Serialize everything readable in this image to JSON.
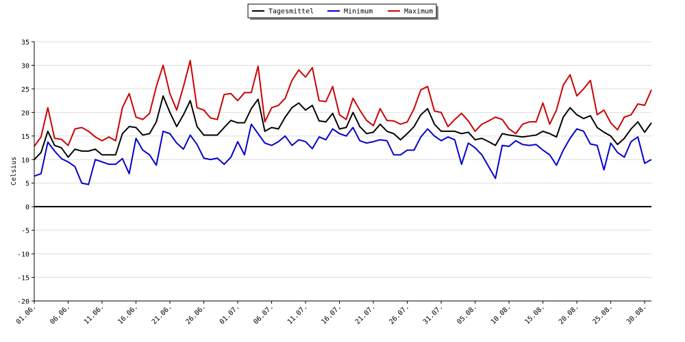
{
  "chart_data": {
    "type": "line",
    "ylabel": "Celsius",
    "ylim": [
      -20,
      35
    ],
    "yticks": [
      35,
      30,
      25,
      20,
      15,
      10,
      5,
      0,
      -5,
      -10,
      -15,
      -20
    ],
    "grid": true,
    "legend_position": "top-center",
    "x_start": "01.06.",
    "x_end": "01.09.",
    "xtick_labels": [
      "01.06.",
      "06.06.",
      "11.06.",
      "16.06.",
      "21.06.",
      "26.06.",
      "01.07.",
      "06.07.",
      "11.07.",
      "16.07.",
      "21.07.",
      "26.07.",
      "31.07.",
      "05.08.",
      "10.08.",
      "15.08.",
      "20.08.",
      "25.08.",
      "30.08."
    ],
    "series": [
      {
        "name": "Tagesmittel",
        "color": "#000000",
        "values": [
          10.0,
          11.5,
          16.0,
          13.0,
          12.5,
          10.5,
          12.2,
          11.8,
          11.8,
          12.2,
          11.0,
          11.0,
          11.0,
          15.5,
          17.0,
          16.8,
          15.2,
          15.5,
          18.0,
          23.5,
          20.0,
          17.0,
          19.5,
          22.5,
          17.0,
          15.2,
          15.2,
          15.2,
          16.8,
          18.3,
          17.8,
          17.8,
          20.8,
          22.8,
          16.0,
          16.8,
          16.5,
          19.0,
          21.0,
          22.0,
          20.5,
          21.5,
          18.2,
          18.0,
          19.8,
          16.5,
          16.8,
          20.0,
          17.0,
          15.5,
          15.8,
          17.5,
          16.0,
          15.5,
          14.2,
          15.5,
          17.0,
          19.5,
          20.8,
          17.5,
          16.0,
          16.0,
          16.0,
          15.5,
          15.8,
          14.2,
          14.5,
          13.8,
          13.0,
          15.5,
          15.2,
          15.0,
          14.8,
          15.0,
          15.2,
          16.0,
          15.5,
          14.8,
          19.0,
          21.0,
          19.5,
          18.7,
          19.3,
          16.8,
          15.8,
          15.0,
          13.2,
          14.5,
          16.5,
          18.0,
          15.8,
          17.8
        ]
      },
      {
        "name": "Minimum",
        "color": "#0000cc",
        "values": [
          6.5,
          7.0,
          13.7,
          11.8,
          10.2,
          9.5,
          8.5,
          5.0,
          4.7,
          10.0,
          9.5,
          9.0,
          9.0,
          10.2,
          7.0,
          14.5,
          12.0,
          11.0,
          8.8,
          16.0,
          15.5,
          13.5,
          12.2,
          15.2,
          13.2,
          10.3,
          10.0,
          10.3,
          9.0,
          10.5,
          13.8,
          11.0,
          17.5,
          15.5,
          13.5,
          13.0,
          13.8,
          15.0,
          13.0,
          14.2,
          13.8,
          12.3,
          14.8,
          14.2,
          16.5,
          15.5,
          15.0,
          16.8,
          14.0,
          13.5,
          13.8,
          14.2,
          14.0,
          11.0,
          11.0,
          12.0,
          12.0,
          14.8,
          16.5,
          15.0,
          14.0,
          14.8,
          14.2,
          9.0,
          13.5,
          12.5,
          11.0,
          8.5,
          6.0,
          13.0,
          12.8,
          14.0,
          13.2,
          13.0,
          13.2,
          12.0,
          11.0,
          8.8,
          12.0,
          14.5,
          16.5,
          16.0,
          13.3,
          13.0,
          7.8,
          13.5,
          11.5,
          10.5,
          13.8,
          14.8,
          9.2,
          10.0
        ]
      },
      {
        "name": "Maximum",
        "color": "#cc0000",
        "values": [
          12.8,
          14.8,
          21.0,
          14.5,
          14.3,
          13.0,
          16.5,
          16.8,
          16.0,
          14.8,
          14.0,
          14.8,
          14.0,
          21.0,
          24.0,
          19.0,
          18.5,
          19.8,
          25.5,
          30.0,
          24.0,
          20.5,
          25.5,
          31.0,
          21.0,
          20.5,
          18.8,
          18.5,
          23.8,
          24.0,
          22.5,
          24.2,
          24.2,
          29.8,
          18.0,
          21.0,
          21.5,
          23.0,
          26.8,
          29.0,
          27.5,
          29.5,
          22.5,
          22.3,
          25.5,
          19.5,
          18.5,
          23.0,
          20.5,
          18.3,
          17.2,
          20.8,
          18.3,
          18.2,
          17.5,
          18.0,
          20.8,
          24.8,
          25.5,
          20.3,
          20.0,
          17.0,
          18.5,
          19.8,
          18.2,
          16.0,
          17.5,
          18.2,
          19.0,
          18.5,
          16.5,
          15.5,
          17.5,
          18.0,
          18.0,
          22.0,
          17.5,
          20.5,
          25.8,
          28.0,
          23.5,
          25.0,
          26.8,
          19.5,
          20.5,
          17.8,
          16.3,
          19.0,
          19.5,
          21.8,
          21.5,
          24.8
        ]
      }
    ]
  }
}
